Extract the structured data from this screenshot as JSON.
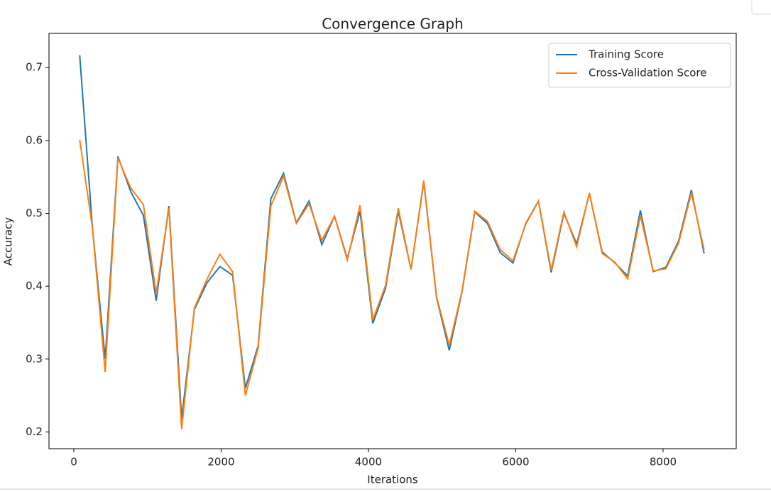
{
  "chart_data": {
    "type": "line",
    "title": "Convergence Graph",
    "xlabel": "Iterations",
    "ylabel": "Accuracy",
    "x": [
      80,
      253,
      426,
      599,
      772,
      945,
      1118,
      1291,
      1464,
      1637,
      1810,
      1983,
      2156,
      2329,
      2502,
      2675,
      2848,
      3021,
      3194,
      3367,
      3540,
      3713,
      3886,
      4059,
      4232,
      4405,
      4578,
      4751,
      4924,
      5097,
      5270,
      5443,
      5616,
      5789,
      5962,
      6135,
      6308,
      6481,
      6654,
      6827,
      7000,
      7173,
      7346,
      7519,
      7692,
      7865,
      8038,
      8211,
      8384,
      8557
    ],
    "series": [
      {
        "name": "Training Score",
        "color": "#1f77b4",
        "values": [
          0.717,
          0.48,
          0.3,
          0.578,
          0.53,
          0.497,
          0.38,
          0.51,
          0.218,
          0.368,
          0.405,
          0.427,
          0.415,
          0.26,
          0.318,
          0.52,
          0.555,
          0.487,
          0.517,
          0.457,
          0.496,
          0.438,
          0.503,
          0.349,
          0.397,
          0.503,
          0.423,
          0.543,
          0.385,
          0.312,
          0.392,
          0.502,
          0.486,
          0.446,
          0.432,
          0.486,
          0.517,
          0.419,
          0.5,
          0.458,
          0.527,
          0.447,
          0.432,
          0.414,
          0.504,
          0.42,
          0.426,
          0.462,
          0.532,
          0.445
        ]
      },
      {
        "name": "Cross-Validation Score",
        "color": "#ff7f0e",
        "values": [
          0.601,
          0.48,
          0.282,
          0.576,
          0.535,
          0.512,
          0.39,
          0.507,
          0.204,
          0.37,
          0.41,
          0.444,
          0.42,
          0.25,
          0.315,
          0.51,
          0.551,
          0.486,
          0.513,
          0.463,
          0.496,
          0.436,
          0.511,
          0.354,
          0.401,
          0.507,
          0.423,
          0.545,
          0.386,
          0.319,
          0.393,
          0.503,
          0.489,
          0.45,
          0.435,
          0.485,
          0.517,
          0.422,
          0.502,
          0.454,
          0.528,
          0.445,
          0.433,
          0.41,
          0.497,
          0.421,
          0.424,
          0.459,
          0.528,
          0.45
        ]
      }
    ],
    "xlim": [
      -337,
      8993
    ],
    "ylim": [
      0.177,
      0.747
    ],
    "xticks": [
      0,
      2000,
      4000,
      6000,
      8000
    ],
    "yticks": [
      0.2,
      0.3,
      0.4,
      0.5,
      0.6,
      0.7
    ],
    "legend": "upper right",
    "grid": false
  }
}
